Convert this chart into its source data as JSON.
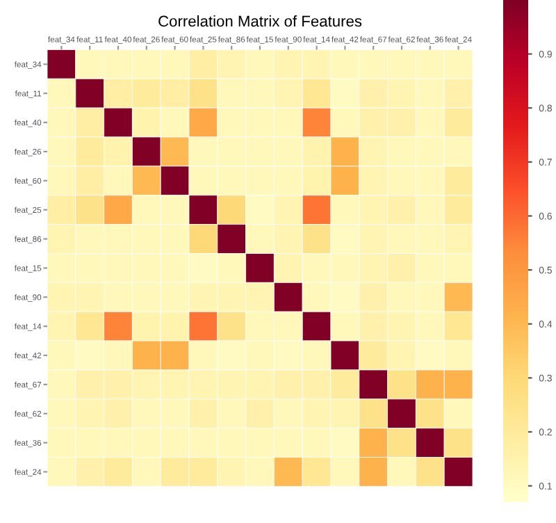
{
  "chart_data": {
    "type": "heatmap",
    "title": "Correlation Matrix of Features",
    "categories": [
      "feat_34",
      "feat_11",
      "feat_40",
      "feat_26",
      "feat_60",
      "feat_25",
      "feat_86",
      "feat_15",
      "feat_90",
      "feat_14",
      "feat_42",
      "feat_67",
      "feat_62",
      "feat_36",
      "feat_24"
    ],
    "y_categories": [
      "feat_34",
      "feat_11",
      "feat_40",
      "feat_26",
      "feat_60",
      "feat_25",
      "feat_86",
      "feat_15",
      "feat_90",
      "feat_14",
      "feat_42",
      "feat_67",
      "feat_62",
      "feat_36",
      "feat_24"
    ],
    "cells": [
      [
        1,
        0.12,
        0.12,
        0.12,
        0.12,
        0.18,
        0.14,
        0.12,
        0.14,
        0.14,
        0.12,
        0.12,
        0.12,
        0.12,
        0.12
      ],
      [
        0.12,
        1,
        0.18,
        0.2,
        0.18,
        0.25,
        0.12,
        0.12,
        0.14,
        0.22,
        0.1,
        0.16,
        0.14,
        0.12,
        0.16
      ],
      [
        0.12,
        0.18,
        1,
        0.15,
        0.12,
        0.45,
        0.12,
        0.12,
        0.12,
        0.55,
        0.12,
        0.16,
        0.16,
        0.12,
        0.2
      ],
      [
        0.12,
        0.2,
        0.15,
        1,
        0.4,
        0.12,
        0.12,
        0.12,
        0.12,
        0.15,
        0.42,
        0.14,
        0.12,
        0.12,
        0.12
      ],
      [
        0.12,
        0.18,
        0.12,
        0.4,
        1,
        0.12,
        0.12,
        0.12,
        0.12,
        0.15,
        0.42,
        0.14,
        0.12,
        0.12,
        0.2
      ],
      [
        0.18,
        0.25,
        0.45,
        0.12,
        0.12,
        1,
        0.3,
        0.1,
        0.14,
        0.58,
        0.12,
        0.14,
        0.16,
        0.12,
        0.2
      ],
      [
        0.14,
        0.12,
        0.12,
        0.12,
        0.12,
        0.3,
        1,
        0.12,
        0.14,
        0.25,
        0.1,
        0.14,
        0.12,
        0.12,
        0.14
      ],
      [
        0.12,
        0.12,
        0.12,
        0.12,
        0.12,
        0.1,
        0.12,
        1,
        0.14,
        0.12,
        0.12,
        0.14,
        0.16,
        0.12,
        0.12
      ],
      [
        0.14,
        0.14,
        0.12,
        0.12,
        0.12,
        0.14,
        0.14,
        0.14,
        1,
        0.12,
        0.1,
        0.16,
        0.12,
        0.12,
        0.4
      ],
      [
        0.14,
        0.22,
        0.55,
        0.15,
        0.15,
        0.58,
        0.25,
        0.12,
        0.12,
        1,
        0.12,
        0.16,
        0.14,
        0.12,
        0.22
      ],
      [
        0.12,
        0.1,
        0.12,
        0.42,
        0.42,
        0.12,
        0.1,
        0.12,
        0.1,
        0.12,
        1,
        0.2,
        0.14,
        0.1,
        0.12
      ],
      [
        0.12,
        0.16,
        0.16,
        0.14,
        0.14,
        0.14,
        0.14,
        0.14,
        0.16,
        0.16,
        0.2,
        1,
        0.25,
        0.42,
        0.42
      ],
      [
        0.12,
        0.14,
        0.16,
        0.12,
        0.12,
        0.16,
        0.12,
        0.16,
        0.12,
        0.14,
        0.14,
        0.25,
        1,
        0.25,
        0.12
      ],
      [
        0.12,
        0.12,
        0.12,
        0.12,
        0.12,
        0.12,
        0.12,
        0.12,
        0.12,
        0.12,
        0.1,
        0.42,
        0.25,
        1,
        0.25
      ],
      [
        0.12,
        0.16,
        0.2,
        0.12,
        0.2,
        0.2,
        0.14,
        0.12,
        0.4,
        0.22,
        0.12,
        0.42,
        0.12,
        0.25,
        1
      ]
    ],
    "clim": [
      0.07,
      1.0
    ],
    "cticks": [
      0.1,
      0.2,
      0.3,
      0.4,
      0.5,
      0.6,
      0.7,
      0.8,
      0.9
    ]
  }
}
